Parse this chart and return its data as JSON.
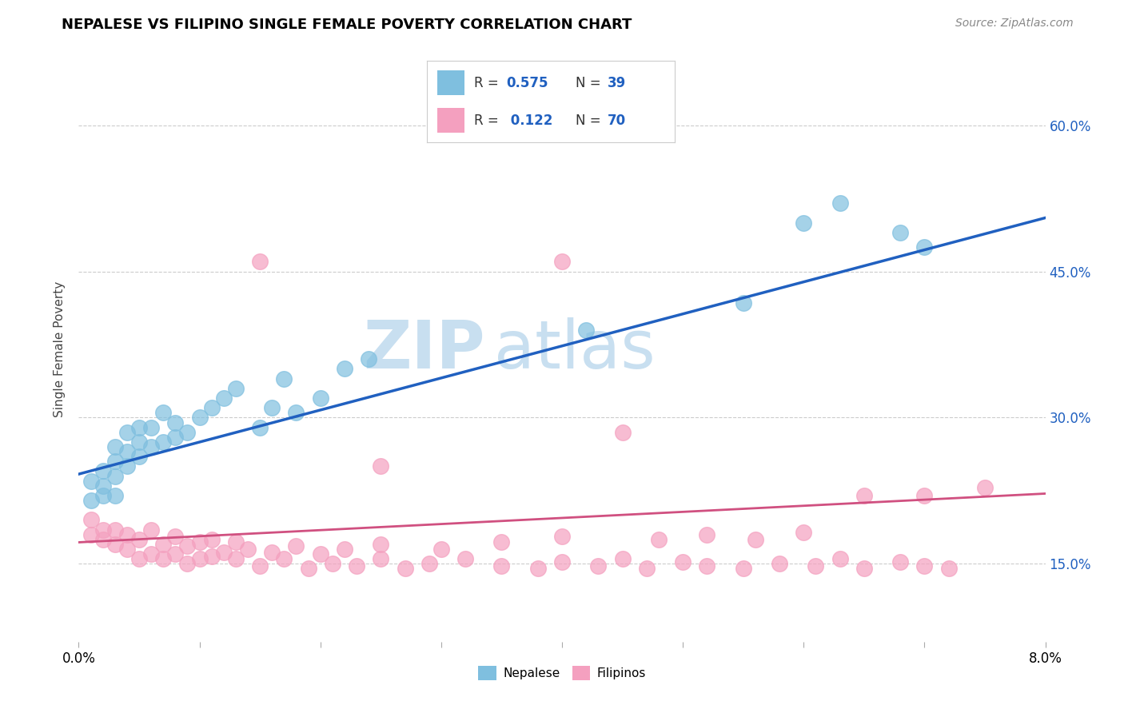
{
  "title": "NEPALESE VS FILIPINO SINGLE FEMALE POVERTY CORRELATION CHART",
  "source_text": "Source: ZipAtlas.com",
  "ylabel": "Single Female Poverty",
  "y_ticks": [
    0.15,
    0.3,
    0.45,
    0.6
  ],
  "y_tick_labels": [
    "15.0%",
    "30.0%",
    "45.0%",
    "60.0%"
  ],
  "x_range": [
    0.0,
    0.08
  ],
  "y_range": [
    0.07,
    0.67
  ],
  "nepalese_R": 0.575,
  "nepalese_N": 39,
  "filipino_R": 0.122,
  "filipino_N": 70,
  "nepalese_color": "#7fbfdf",
  "filipino_color": "#f4a0bf",
  "nepalese_line_color": "#2060c0",
  "filipino_line_color": "#d05080",
  "legend_text_color": "#2060c0",
  "watermark_color": "#c8dff0",
  "nepalese_line_x0": 0.0,
  "nepalese_line_y0": 0.242,
  "nepalese_line_x1": 0.08,
  "nepalese_line_y1": 0.505,
  "filipino_line_x0": 0.0,
  "filipino_line_y0": 0.172,
  "filipino_line_x1": 0.08,
  "filipino_line_y1": 0.222,
  "nepalese_scatter_x": [
    0.001,
    0.001,
    0.002,
    0.002,
    0.002,
    0.003,
    0.003,
    0.003,
    0.003,
    0.004,
    0.004,
    0.004,
    0.005,
    0.005,
    0.005,
    0.006,
    0.006,
    0.007,
    0.007,
    0.008,
    0.008,
    0.009,
    0.01,
    0.011,
    0.012,
    0.013,
    0.015,
    0.016,
    0.017,
    0.018,
    0.02,
    0.022,
    0.024,
    0.06,
    0.063,
    0.068,
    0.07,
    0.042,
    0.055
  ],
  "nepalese_scatter_y": [
    0.215,
    0.235,
    0.22,
    0.23,
    0.245,
    0.22,
    0.24,
    0.255,
    0.27,
    0.25,
    0.265,
    0.285,
    0.26,
    0.275,
    0.29,
    0.27,
    0.29,
    0.275,
    0.305,
    0.28,
    0.295,
    0.285,
    0.3,
    0.31,
    0.32,
    0.33,
    0.29,
    0.31,
    0.34,
    0.305,
    0.32,
    0.35,
    0.36,
    0.5,
    0.52,
    0.49,
    0.475,
    0.39,
    0.418
  ],
  "filipino_scatter_x": [
    0.001,
    0.001,
    0.002,
    0.002,
    0.003,
    0.003,
    0.004,
    0.004,
    0.005,
    0.005,
    0.006,
    0.006,
    0.007,
    0.007,
    0.008,
    0.008,
    0.009,
    0.009,
    0.01,
    0.01,
    0.011,
    0.011,
    0.012,
    0.013,
    0.013,
    0.014,
    0.015,
    0.016,
    0.017,
    0.018,
    0.019,
    0.02,
    0.021,
    0.022,
    0.023,
    0.025,
    0.027,
    0.029,
    0.032,
    0.035,
    0.038,
    0.04,
    0.043,
    0.045,
    0.047,
    0.05,
    0.052,
    0.055,
    0.058,
    0.061,
    0.063,
    0.065,
    0.068,
    0.07,
    0.072,
    0.025,
    0.03,
    0.035,
    0.04,
    0.048,
    0.052,
    0.056,
    0.06,
    0.065,
    0.07,
    0.075,
    0.04,
    0.045,
    0.025,
    0.015
  ],
  "filipino_scatter_y": [
    0.18,
    0.195,
    0.175,
    0.185,
    0.17,
    0.185,
    0.165,
    0.18,
    0.155,
    0.175,
    0.16,
    0.185,
    0.155,
    0.17,
    0.16,
    0.178,
    0.15,
    0.168,
    0.155,
    0.172,
    0.158,
    0.175,
    0.162,
    0.155,
    0.172,
    0.165,
    0.148,
    0.162,
    0.155,
    0.168,
    0.145,
    0.16,
    0.15,
    0.165,
    0.148,
    0.155,
    0.145,
    0.15,
    0.155,
    0.148,
    0.145,
    0.152,
    0.148,
    0.155,
    0.145,
    0.152,
    0.148,
    0.145,
    0.15,
    0.148,
    0.155,
    0.145,
    0.152,
    0.148,
    0.145,
    0.17,
    0.165,
    0.172,
    0.178,
    0.175,
    0.18,
    0.175,
    0.182,
    0.22,
    0.22,
    0.228,
    0.46,
    0.285,
    0.25,
    0.46
  ]
}
